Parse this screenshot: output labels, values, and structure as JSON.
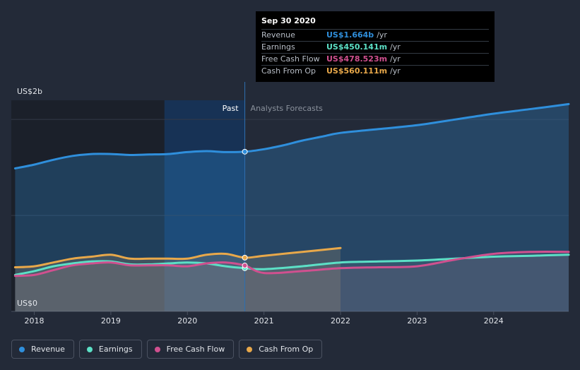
{
  "chart_data": {
    "type": "area",
    "title": "",
    "xlabel": "",
    "ylabel": "",
    "y_axis_labels": {
      "top": "US$2b",
      "bottom": "US$0"
    },
    "ylim": [
      0,
      2.2
    ],
    "xlim": [
      2017.7,
      2024.98
    ],
    "x_ticks": [
      "2018",
      "2019",
      "2020",
      "2021",
      "2022",
      "2023",
      "2024"
    ],
    "x_tick_values": [
      2018,
      2019,
      2020,
      2021,
      2022,
      2023,
      2024
    ],
    "grid": true,
    "past_label": "Past",
    "forecast_label": "Analysts Forecasts",
    "divider_x": 2020.75,
    "highlight_start_x": 2019.7,
    "series": [
      {
        "name": "Revenue",
        "color": "#2f8fdc",
        "x": [
          2017.75,
          2018.0,
          2018.25,
          2018.5,
          2018.75,
          2019.0,
          2019.25,
          2019.5,
          2019.75,
          2020.0,
          2020.25,
          2020.5,
          2020.75,
          2021.0,
          2021.25,
          2021.5,
          2021.75,
          2022.0,
          2022.5,
          2023.0,
          2023.5,
          2024.0,
          2024.5,
          2024.98
        ],
        "values": [
          1.49,
          1.53,
          1.58,
          1.62,
          1.64,
          1.64,
          1.63,
          1.635,
          1.64,
          1.66,
          1.67,
          1.66,
          1.664,
          1.69,
          1.73,
          1.78,
          1.82,
          1.86,
          1.9,
          1.94,
          2.0,
          2.06,
          2.11,
          2.16
        ]
      },
      {
        "name": "Earnings",
        "color": "#5ce0c6",
        "x": [
          2017.75,
          2018.0,
          2018.25,
          2018.5,
          2018.75,
          2019.0,
          2019.25,
          2019.5,
          2019.75,
          2020.0,
          2020.25,
          2020.5,
          2020.75,
          2021.0,
          2021.5,
          2022.0,
          2022.5,
          2023.0,
          2023.5,
          2024.0,
          2024.5,
          2024.98
        ],
        "values": [
          0.38,
          0.42,
          0.47,
          0.5,
          0.52,
          0.52,
          0.49,
          0.49,
          0.5,
          0.51,
          0.5,
          0.47,
          0.45,
          0.44,
          0.47,
          0.51,
          0.52,
          0.53,
          0.55,
          0.57,
          0.58,
          0.59
        ]
      },
      {
        "name": "Free Cash Flow",
        "color": "#d0508f",
        "x": [
          2017.75,
          2018.0,
          2018.25,
          2018.5,
          2018.75,
          2019.0,
          2019.25,
          2019.5,
          2019.75,
          2020.0,
          2020.25,
          2020.5,
          2020.75,
          2021.0,
          2021.5,
          2022.0,
          2022.5,
          2023.0,
          2023.5,
          2024.0,
          2024.5,
          2024.98
        ],
        "values": [
          0.37,
          0.38,
          0.43,
          0.48,
          0.5,
          0.51,
          0.48,
          0.48,
          0.48,
          0.47,
          0.5,
          0.51,
          0.478,
          0.4,
          0.42,
          0.45,
          0.46,
          0.47,
          0.54,
          0.6,
          0.62,
          0.62
        ]
      },
      {
        "name": "Cash From Op",
        "color": "#e8a84a",
        "x": [
          2017.75,
          2018.0,
          2018.25,
          2018.5,
          2018.75,
          2019.0,
          2019.25,
          2019.5,
          2019.75,
          2020.0,
          2020.25,
          2020.5,
          2020.75,
          2021.0,
          2021.5,
          2022.0
        ],
        "values": [
          0.46,
          0.47,
          0.51,
          0.55,
          0.57,
          0.59,
          0.55,
          0.55,
          0.55,
          0.55,
          0.59,
          0.6,
          0.56,
          0.58,
          0.62,
          0.66
        ]
      }
    ]
  },
  "tooltip": {
    "date": "Sep 30 2020",
    "rows": [
      {
        "label": "Revenue",
        "value": "US$1.664b",
        "unit": "/yr",
        "color": "#2f8fdc"
      },
      {
        "label": "Earnings",
        "value": "US$450.141m",
        "unit": "/yr",
        "color": "#5ce0c6"
      },
      {
        "label": "Free Cash Flow",
        "value": "US$478.523m",
        "unit": "/yr",
        "color": "#d0508f"
      },
      {
        "label": "Cash From Op",
        "value": "US$560.111m",
        "unit": "/yr",
        "color": "#e8a84a"
      }
    ]
  },
  "legend": [
    {
      "label": "Revenue",
      "color": "#2f8fdc"
    },
    {
      "label": "Earnings",
      "color": "#5ce0c6"
    },
    {
      "label": "Free Cash Flow",
      "color": "#d0508f"
    },
    {
      "label": "Cash From Op",
      "color": "#e8a84a"
    }
  ]
}
